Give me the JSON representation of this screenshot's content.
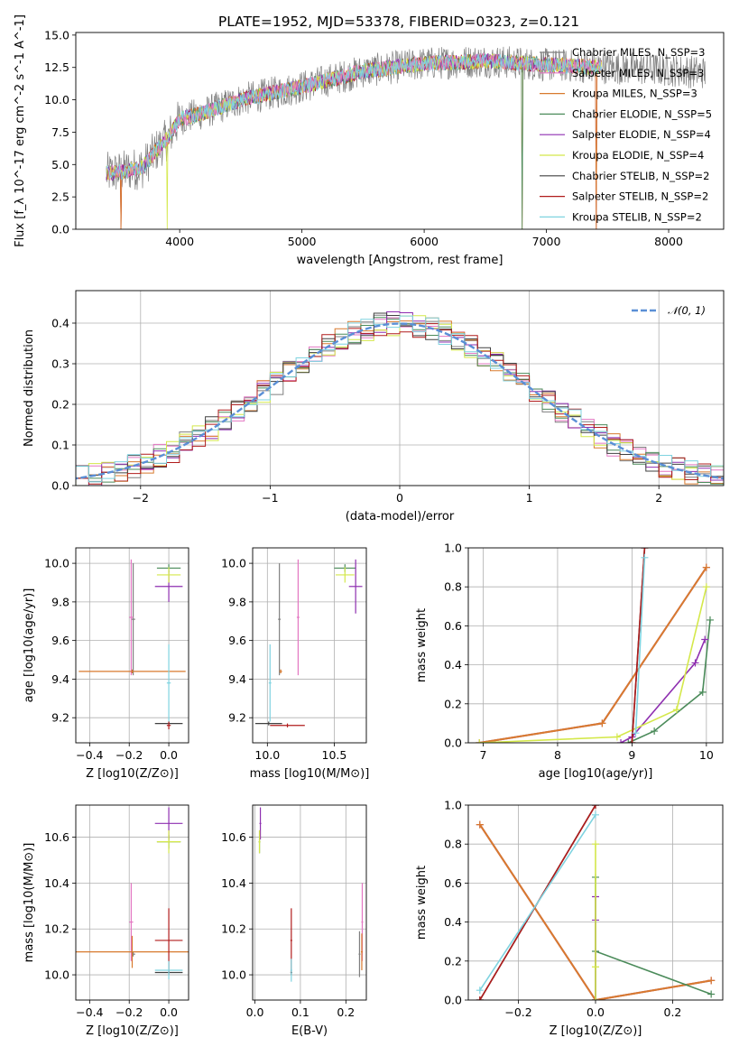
{
  "title": "PLATE=1952, MJD=53378, FIBERID=0323, z=0.121",
  "colors": {
    "Chabrier MILES": "#7f7f7f",
    "Salpeter MILES": "#e377c2",
    "Kroupa MILES": "#d87a2e",
    "Chabrier ELODIE": "#4b8b5a",
    "Salpeter ELODIE": "#8e2fb0",
    "Kroupa ELODIE": "#d4e84a",
    "Chabrier STELIB": "#404040",
    "Salpeter STELIB": "#b01c1c",
    "Kroupa STELIB": "#7fd3e0",
    "normal_curve": "#5a8fd6"
  },
  "legend_spectrum": [
    {
      "model": "Chabrier MILES",
      "label": "Chabrier MILES, N_SSP=3"
    },
    {
      "model": "Salpeter MILES",
      "label": "Salpeter MILES, N_SSP=3"
    },
    {
      "model": "Kroupa MILES",
      "label": "Kroupa MILES, N_SSP=3"
    },
    {
      "model": "Chabrier ELODIE",
      "label": "Chabrier ELODIE, N_SSP=5"
    },
    {
      "model": "Salpeter ELODIE",
      "label": "Salpeter ELODIE, N_SSP=4"
    },
    {
      "model": "Kroupa ELODIE",
      "label": "Kroupa ELODIE, N_SSP=4"
    },
    {
      "model": "Chabrier STELIB",
      "label": "Chabrier STELIB, N_SSP=2"
    },
    {
      "model": "Salpeter STELIB",
      "label": "Salpeter STELIB, N_SSP=2"
    },
    {
      "model": "Kroupa STELIB",
      "label": "Kroupa STELIB, N_SSP=2"
    }
  ],
  "chart_data": [
    {
      "id": "spectrum",
      "type": "line",
      "xlabel": "wavelength [Angstrom, rest frame]",
      "ylabel": "Flux [f_λ 10^-17 erg cm^-2 s^-1 A^-1]",
      "xlim": [
        3150,
        8450
      ],
      "ylim": [
        0,
        15.2
      ],
      "xticks": [
        4000,
        5000,
        6000,
        7000,
        8000
      ],
      "yticks": [
        0.0,
        2.5,
        5.0,
        7.5,
        10.0,
        12.5,
        15.0
      ],
      "grid": false,
      "legend_position": "right",
      "data_continuum": {
        "x": [
          3400,
          3500,
          3700,
          3800,
          3900,
          4000,
          4200,
          4500,
          5000,
          5500,
          6000,
          6500,
          7000,
          7500,
          8000,
          8300
        ],
        "y": [
          4.3,
          4.4,
          4.8,
          6.0,
          7.0,
          8.5,
          9.0,
          10.0,
          11.0,
          12.2,
          12.8,
          13.0,
          12.7,
          12.5,
          12.3,
          12.1
        ]
      },
      "model_x_range": [
        3400,
        7450
      ],
      "model_dropouts": [
        {
          "model": "Kroupa ELODIE",
          "x": 3900
        },
        {
          "model": "Kroupa MILES",
          "x": 3520
        },
        {
          "model": "Salpeter STELIB",
          "x": 3520
        },
        {
          "model": "Kroupa MILES",
          "x": 6800
        },
        {
          "model": "Chabrier ELODIE",
          "x": 6800
        },
        {
          "model": "Kroupa MILES",
          "x": 7410
        },
        {
          "model": "Salpeter STELIB",
          "x": 7410
        }
      ]
    },
    {
      "id": "residuals",
      "type": "histogram",
      "xlabel": "(data-model)/error",
      "ylabel": "Normed distribution",
      "xlim": [
        -2.5,
        2.5
      ],
      "ylim": [
        0,
        0.48
      ],
      "xticks": [
        -2,
        -1,
        0,
        1,
        2
      ],
      "yticks": [
        0.0,
        0.1,
        0.2,
        0.3,
        0.4
      ],
      "grid": true,
      "bin_width": 0.1,
      "curve": {
        "name": "N(0,1)",
        "label_display": "𝒩(0, 1)",
        "style": "dashed"
      },
      "legend_position": "top-right"
    },
    {
      "id": "age_vs_Z",
      "type": "errorbar",
      "xlabel": "Z [log10(Z/Z⊙)]",
      "ylabel": "age [log10(age/yr)]",
      "xlim": [
        -0.47,
        0.1
      ],
      "ylim": [
        9.07,
        10.08
      ],
      "xticks": [
        -0.4,
        -0.2,
        0.0
      ],
      "yticks": [
        9.2,
        9.4,
        9.6,
        9.8,
        10.0
      ],
      "grid": true,
      "points": [
        {
          "model": "Chabrier MILES",
          "x": -0.18,
          "xerr": 0.01,
          "y": 9.71,
          "yerr": 0.29
        },
        {
          "model": "Salpeter MILES",
          "x": -0.19,
          "xerr": 0.01,
          "y": 9.72,
          "yerr": 0.3
        },
        {
          "model": "Kroupa MILES",
          "x": -0.185,
          "xerr": 0.27,
          "y": 9.44,
          "yerr": 0.01
        },
        {
          "model": "Chabrier ELODIE",
          "x": 0.0,
          "xerr": 0.06,
          "y": 9.975,
          "yerr": 0.02
        },
        {
          "model": "Salpeter ELODIE",
          "x": 0.0,
          "xerr": 0.07,
          "y": 9.88,
          "yerr": 0.08
        },
        {
          "model": "Kroupa ELODIE",
          "x": 0.0,
          "xerr": 0.06,
          "y": 9.94,
          "yerr": 0.04
        },
        {
          "model": "Chabrier STELIB",
          "x": 0.0,
          "xerr": 0.07,
          "y": 9.17,
          "yerr": 0.01
        },
        {
          "model": "Salpeter STELIB",
          "x": 0.0,
          "xerr": 0.01,
          "y": 9.16,
          "yerr": 0.02
        },
        {
          "model": "Kroupa STELIB",
          "x": 0.0,
          "xerr": 0.01,
          "y": 9.38,
          "yerr": 0.2
        }
      ]
    },
    {
      "id": "age_vs_mass",
      "type": "errorbar",
      "xlabel": "mass [log10(M/M⊙)]",
      "ylabel": "",
      "xlim": [
        9.89,
        10.74
      ],
      "ylim": [
        9.07,
        10.08
      ],
      "xticks": [
        10.0,
        10.5
      ],
      "yticks": [
        9.2,
        9.4,
        9.6,
        9.8,
        10.0
      ],
      "grid": true,
      "points": [
        {
          "model": "Chabrier MILES",
          "x": 10.09,
          "xerr": 0.01,
          "y": 9.71,
          "yerr": 0.29
        },
        {
          "model": "Salpeter MILES",
          "x": 10.23,
          "xerr": 0.01,
          "y": 9.72,
          "yerr": 0.3
        },
        {
          "model": "Kroupa MILES",
          "x": 10.1,
          "xerr": 0.01,
          "y": 9.44,
          "yerr": 0.01
        },
        {
          "model": "Chabrier ELODIE",
          "x": 10.58,
          "xerr": 0.08,
          "y": 9.975,
          "yerr": 0.02
        },
        {
          "model": "Salpeter ELODIE",
          "x": 10.66,
          "xerr": 0.05,
          "y": 9.88,
          "yerr": 0.14
        },
        {
          "model": "Kroupa ELODIE",
          "x": 10.58,
          "xerr": 0.07,
          "y": 9.94,
          "yerr": 0.04
        },
        {
          "model": "Chabrier STELIB",
          "x": 10.01,
          "xerr": 0.1,
          "y": 9.17,
          "yerr": 0.01
        },
        {
          "model": "Salpeter STELIB",
          "x": 10.15,
          "xerr": 0.13,
          "y": 9.16,
          "yerr": 0.01
        },
        {
          "model": "Kroupa STELIB",
          "x": 10.02,
          "xerr": 0.01,
          "y": 9.38,
          "yerr": 0.2
        }
      ]
    },
    {
      "id": "mass_weight_vs_age",
      "type": "line",
      "xlabel": "age [log10(age/yr)]",
      "ylabel": "mass weight",
      "xlim": [
        6.8,
        10.22
      ],
      "ylim": [
        0,
        1
      ],
      "xticks": [
        7,
        8,
        9,
        10
      ],
      "yticks": [
        0.0,
        0.2,
        0.4,
        0.6,
        0.8,
        1.0
      ],
      "grid": true,
      "series": [
        {
          "model": "Chabrier MILES",
          "x": [
            6.95,
            8.6,
            10.0
          ],
          "y": [
            0.0,
            0.1,
            0.9
          ]
        },
        {
          "model": "Salpeter MILES",
          "x": [
            6.95,
            8.6,
            10.0
          ],
          "y": [
            0.0,
            0.1,
            0.9
          ]
        },
        {
          "model": "Kroupa MILES",
          "x": [
            6.95,
            8.6,
            10.0
          ],
          "y": [
            0.0,
            0.1,
            0.9
          ]
        },
        {
          "model": "Chabrier ELODIE",
          "x": [
            8.95,
            9.3,
            9.95,
            10.05
          ],
          "y": [
            0.0,
            0.06,
            0.26,
            0.63
          ]
        },
        {
          "model": "Salpeter ELODIE",
          "x": [
            8.85,
            9.0,
            9.85,
            9.98
          ],
          "y": [
            0.0,
            0.03,
            0.41,
            0.53
          ]
        },
        {
          "model": "Kroupa ELODIE",
          "x": [
            6.95,
            8.8,
            9.6,
            10.0
          ],
          "y": [
            0.0,
            0.03,
            0.17,
            0.8
          ]
        },
        {
          "model": "Chabrier STELIB",
          "x": [
            9.0,
            9.17
          ],
          "y": [
            0.0,
            1.0
          ]
        },
        {
          "model": "Salpeter STELIB",
          "x": [
            9.0,
            9.17
          ],
          "y": [
            0.0,
            1.0
          ]
        },
        {
          "model": "Kroupa STELIB",
          "x": [
            9.05,
            9.17
          ],
          "y": [
            0.05,
            0.95
          ]
        }
      ]
    },
    {
      "id": "mass_vs_Z",
      "type": "errorbar",
      "xlabel": "Z [log10(Z/Z⊙)]",
      "ylabel": "mass [log10(M/M⊙)]",
      "xlim": [
        -0.47,
        0.1
      ],
      "ylim": [
        9.89,
        10.74
      ],
      "xticks": [
        -0.4,
        -0.2,
        0.0
      ],
      "yticks": [
        10.0,
        10.2,
        10.4,
        10.6
      ],
      "grid": true,
      "points": [
        {
          "model": "Chabrier MILES",
          "x": -0.18,
          "xerr": 0.01,
          "y": 10.09,
          "yerr": 0.01
        },
        {
          "model": "Salpeter MILES",
          "x": -0.19,
          "xerr": 0.01,
          "y": 10.23,
          "yerr": 0.17
        },
        {
          "model": "Kroupa MILES",
          "x": -0.185,
          "xerr": 0.29,
          "y": 10.1,
          "yerr": 0.07
        },
        {
          "model": "Chabrier ELODIE",
          "x": 0.0,
          "xerr": 0.06,
          "y": 10.58,
          "yerr": 0.03
        },
        {
          "model": "Salpeter ELODIE",
          "x": 0.0,
          "xerr": 0.07,
          "y": 10.66,
          "yerr": 0.07
        },
        {
          "model": "Kroupa ELODIE",
          "x": 0.0,
          "xerr": 0.06,
          "y": 10.58,
          "yerr": 0.05
        },
        {
          "model": "Chabrier STELIB",
          "x": 0.0,
          "xerr": 0.07,
          "y": 10.01,
          "yerr": 0.01
        },
        {
          "model": "Salpeter STELIB",
          "x": 0.0,
          "xerr": 0.07,
          "y": 10.15,
          "yerr": 0.14
        },
        {
          "model": "Kroupa STELIB",
          "x": 0.0,
          "xerr": 0.07,
          "y": 10.02,
          "yerr": 0.04
        }
      ]
    },
    {
      "id": "mass_vs_EBV",
      "type": "errorbar",
      "xlabel": "E(B-V)",
      "ylabel": "",
      "xlim": [
        -0.005,
        0.245
      ],
      "ylim": [
        9.89,
        10.74
      ],
      "xticks": [
        0.0,
        0.1,
        0.2
      ],
      "yticks": [
        10.0,
        10.2,
        10.4,
        10.6
      ],
      "grid": true,
      "points": [
        {
          "model": "Chabrier MILES",
          "x": 0.23,
          "xerr": 0.002,
          "y": 10.09,
          "yerr": 0.1
        },
        {
          "model": "Salpeter MILES",
          "x": 0.236,
          "xerr": 0.002,
          "y": 10.23,
          "yerr": 0.17
        },
        {
          "model": "Kroupa MILES",
          "x": 0.235,
          "xerr": 0.002,
          "y": 10.1,
          "yerr": 0.08
        },
        {
          "model": "Chabrier ELODIE",
          "x": 0.01,
          "xerr": 0.002,
          "y": 10.58,
          "yerr": 0.05
        },
        {
          "model": "Salpeter ELODIE",
          "x": 0.012,
          "xerr": 0.002,
          "y": 10.66,
          "yerr": 0.07
        },
        {
          "model": "Kroupa ELODIE",
          "x": 0.01,
          "xerr": 0.002,
          "y": 10.58,
          "yerr": 0.05
        },
        {
          "model": "Chabrier STELIB",
          "x": 0.08,
          "xerr": 0.002,
          "y": 10.01,
          "yerr": 0.01
        },
        {
          "model": "Salpeter STELIB",
          "x": 0.08,
          "xerr": 0.002,
          "y": 10.15,
          "yerr": 0.14
        },
        {
          "model": "Kroupa STELIB",
          "x": 0.08,
          "xerr": 0.002,
          "y": 10.02,
          "yerr": 0.05
        }
      ]
    },
    {
      "id": "mass_weight_vs_Z",
      "type": "line",
      "xlabel": "Z [log10(Z/Z⊙)]",
      "ylabel": "mass weight",
      "xlim": [
        -0.33,
        0.33
      ],
      "ylim": [
        0,
        1
      ],
      "xticks": [
        -0.2,
        0.0,
        0.2
      ],
      "yticks": [
        0.0,
        0.2,
        0.4,
        0.6,
        0.8,
        1.0
      ],
      "grid": true,
      "series": [
        {
          "model": "Chabrier MILES",
          "x": [
            -0.3,
            0.0,
            0.3
          ],
          "y": [
            0.9,
            0.0,
            0.1
          ]
        },
        {
          "model": "Salpeter MILES",
          "x": [
            -0.3,
            0.0,
            0.3
          ],
          "y": [
            0.9,
            0.0,
            0.1
          ]
        },
        {
          "model": "Kroupa MILES",
          "x": [
            -0.3,
            0.0,
            0.3
          ],
          "y": [
            0.9,
            0.0,
            0.1
          ]
        },
        {
          "model": "Chabrier ELODIE",
          "x": [
            0.0,
            0.0,
            0.0,
            0.3
          ],
          "y": [
            0.0,
            0.63,
            0.25,
            0.03
          ]
        },
        {
          "model": "Salpeter ELODIE",
          "x": [
            0.0,
            0.0,
            0.0
          ],
          "y": [
            0.0,
            0.53,
            0.41
          ]
        },
        {
          "model": "Kroupa ELODIE",
          "x": [
            0.0,
            0.0,
            0.0
          ],
          "y": [
            0.0,
            0.8,
            0.17
          ]
        },
        {
          "model": "Chabrier STELIB",
          "x": [
            -0.3,
            0.0
          ],
          "y": [
            0.0,
            1.0
          ]
        },
        {
          "model": "Salpeter STELIB",
          "x": [
            -0.3,
            0.0
          ],
          "y": [
            0.0,
            1.0
          ]
        },
        {
          "model": "Kroupa STELIB",
          "x": [
            -0.3,
            0.0
          ],
          "y": [
            0.05,
            0.95
          ]
        }
      ]
    }
  ]
}
